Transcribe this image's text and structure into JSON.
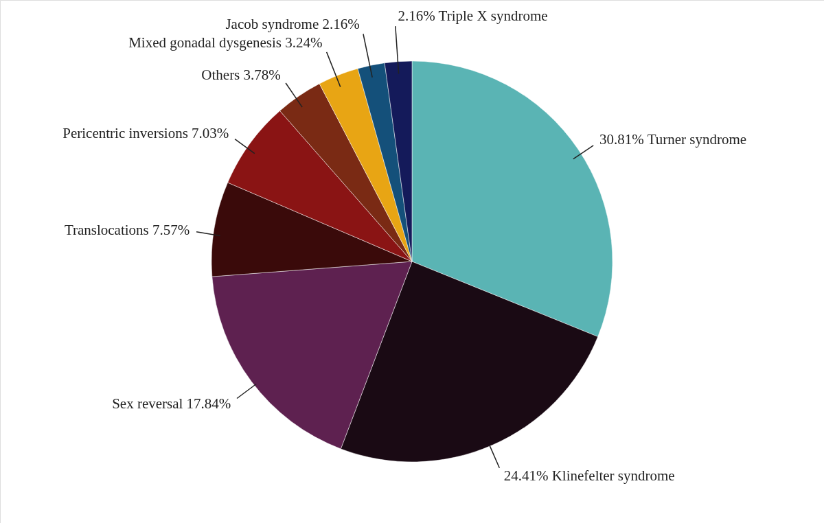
{
  "chart_data": {
    "type": "pie",
    "categories": [
      "Turner syndrome",
      "Klinefelter syndrome",
      "Sex reversal",
      "Translocations",
      "Pericentric inversions",
      "Others",
      "Mixed gonadal dysgenesis",
      "Jacob syndrome",
      "Triple X syndrome"
    ],
    "values": [
      30.81,
      24.41,
      17.84,
      7.57,
      7.03,
      3.78,
      3.24,
      2.16,
      2.16
    ],
    "value_labels": [
      "30.81%",
      "24.41%",
      "17.84%",
      "7.57%",
      "7.03%",
      "3.78%",
      "3.24%",
      "2.16%",
      "2.16%"
    ],
    "colors": [
      "#5ab4b4",
      "#1a0a14",
      "#5e2150",
      "#3a0a0a",
      "#8a1414",
      "#7a2a14",
      "#e8a514",
      "#14507a",
      "#141a5a"
    ]
  }
}
